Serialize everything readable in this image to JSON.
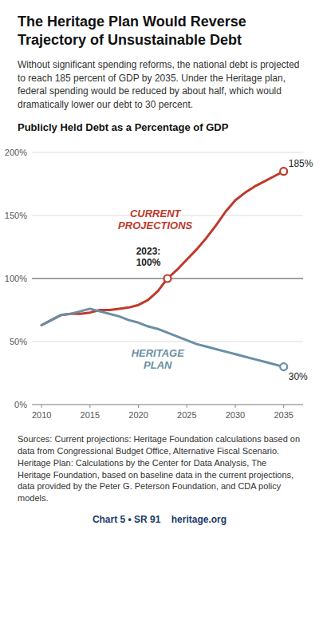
{
  "chart_data": {
    "type": "line",
    "title": "The Heritage Plan Would Reverse\nTrajectory of Unsustainable Debt",
    "subtitle": "Without significant spending reforms, the national debt is projected to reach 185 percent of GDP by 2035. Under the Heritage plan, federal spending would be reduced by about half, which would dramatically lower our debt to 30 percent.",
    "ylabel": "Publicly Held Debt as a Percentage of GDP",
    "x": [
      2010,
      2011,
      2012,
      2013,
      2014,
      2015,
      2016,
      2017,
      2018,
      2019,
      2020,
      2021,
      2022,
      2023,
      2024,
      2025,
      2026,
      2027,
      2028,
      2029,
      2030,
      2031,
      2032,
      2033,
      2034,
      2035
    ],
    "series": [
      {
        "name": "CURRENT\nPROJECTIONS",
        "color": "#c0392b",
        "values": [
          63,
          67,
          71,
          72,
          72,
          73,
          75,
          75,
          76,
          77,
          79,
          83,
          90,
          100,
          107,
          115,
          123,
          132,
          142,
          153,
          162,
          168,
          173,
          177,
          181,
          185
        ]
      },
      {
        "name": "HERITAGE\nPLAN",
        "color": "#6b8fa3",
        "values": [
          63,
          67,
          71,
          72,
          74,
          76,
          74,
          72,
          70,
          67,
          65,
          62,
          60,
          57,
          54,
          51,
          48,
          46,
          44,
          42,
          40,
          38,
          36,
          34,
          32,
          30
        ]
      }
    ],
    "annotations": [
      {
        "text": "185%",
        "x": 2035,
        "y": 185,
        "color": "#c0392b"
      },
      {
        "text": "30%",
        "x": 2035,
        "y": 30,
        "color": "#6b8fa3"
      },
      {
        "text": "2023:\n100%",
        "x": 2023,
        "y": 100,
        "color": "#c0392b"
      }
    ],
    "reference_lines": [
      {
        "value": 100,
        "color": "#555555"
      }
    ],
    "xlim": [
      2009,
      2037
    ],
    "ylim": [
      0,
      200
    ],
    "xticks": [
      2010,
      2015,
      2020,
      2025,
      2030,
      2035
    ],
    "yticks": [
      {
        "value": 0,
        "label": "0%"
      },
      {
        "value": 50,
        "label": "50%"
      },
      {
        "value": 100,
        "label": "100%"
      },
      {
        "value": 150,
        "label": "150%"
      },
      {
        "value": 200,
        "label": "200%"
      }
    ],
    "grid": true,
    "source": "Sources: Current projections: Heritage Foundation calculations based on data from Congressional Budget Office, Alternative Fiscal Scenario. Heritage Plan: Calculations by the Center for Data Analysis, The Heritage Foundation, based on baseline data in the current projections, data provided by the Peter G. Peterson Foundation, and CDA policy models.",
    "footer": "Chart 5 • SR 91    heritage.org"
  }
}
